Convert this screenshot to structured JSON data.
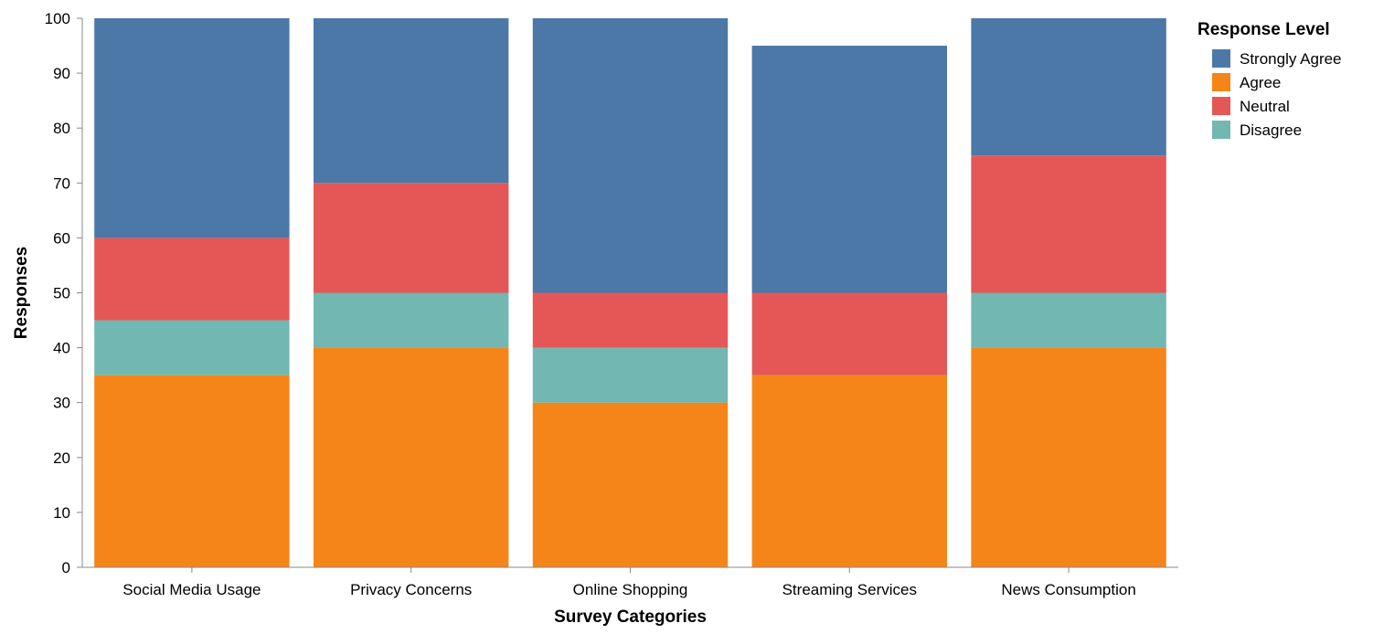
{
  "chart_data": {
    "type": "bar",
    "stacked": true,
    "title": "",
    "xlabel": "Survey Categories",
    "ylabel": "Responses",
    "ylim": [
      0,
      100
    ],
    "yticks": [
      0,
      10,
      20,
      30,
      40,
      50,
      60,
      70,
      80,
      90,
      100
    ],
    "grid": false,
    "legend_title": "Response Level",
    "legend_position": "top-right",
    "categories": [
      "Social Media Usage",
      "Privacy Concerns",
      "Online Shopping",
      "Streaming Services",
      "News Consumption"
    ],
    "stack_order": [
      "Agree",
      "Disagree",
      "Neutral",
      "Strongly Agree"
    ],
    "legend_order": [
      "Strongly Agree",
      "Agree",
      "Neutral",
      "Disagree"
    ],
    "series": [
      {
        "name": "Strongly Agree",
        "color": "#4c78a8",
        "values": [
          40,
          30,
          50,
          45,
          25
        ]
      },
      {
        "name": "Agree",
        "color": "#f58518",
        "values": [
          35,
          40,
          30,
          35,
          40
        ]
      },
      {
        "name": "Neutral",
        "color": "#e45756",
        "values": [
          15,
          20,
          10,
          15,
          25
        ]
      },
      {
        "name": "Disagree",
        "color": "#72b7b2",
        "values": [
          10,
          10,
          10,
          0,
          10
        ]
      }
    ]
  }
}
